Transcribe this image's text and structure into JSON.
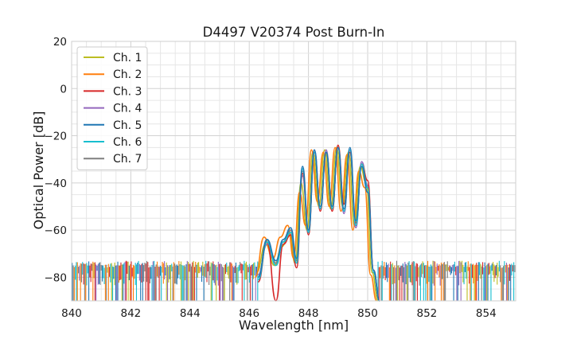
{
  "chart_data": {
    "type": "line",
    "title": "D4497 V20374 Post Burn-In",
    "xlabel": "Wavelength [nm]",
    "ylabel": "Optical Power [dB]",
    "xlim": [
      840,
      855
    ],
    "ylim": [
      -90,
      20
    ],
    "xticks": [
      840,
      842,
      844,
      846,
      848,
      850,
      852,
      854
    ],
    "yticks": [
      20,
      0,
      -20,
      -40,
      -60,
      -80
    ],
    "grid": true,
    "legend_position": "top-left",
    "noise_floor_range": [
      -90,
      -73
    ],
    "series": [
      {
        "name": "Ch. 1",
        "color": "#bcbd22",
        "x": [
          846.25,
          846.55,
          846.85,
          847.1,
          847.35,
          847.55,
          847.75,
          847.95,
          848.15,
          848.35,
          848.55,
          848.75,
          848.95,
          849.15,
          849.35,
          849.55,
          849.75,
          849.95,
          850.15,
          850.35
        ],
        "y": [
          -78,
          -66,
          -75,
          -67,
          -61,
          -74,
          -40,
          -60,
          -27,
          -50,
          -26,
          -51,
          -25,
          -50,
          -27,
          -58,
          -33,
          -40,
          -78,
          -90
        ]
      },
      {
        "name": "Ch. 2",
        "color": "#ff7f0e",
        "x": [
          846.2,
          846.5,
          846.8,
          847.05,
          847.3,
          847.5,
          847.7,
          847.9,
          848.1,
          848.3,
          848.5,
          848.7,
          848.9,
          849.1,
          849.3,
          849.5,
          849.7,
          849.9,
          850.1,
          850.3
        ],
        "y": [
          -80,
          -63,
          -72,
          -63,
          -58,
          -72,
          -44,
          -58,
          -26,
          -48,
          -27,
          -50,
          -25,
          -52,
          -28,
          -60,
          -35,
          -42,
          -79,
          -90
        ]
      },
      {
        "name": "Ch. 3",
        "color": "#d62728",
        "x": [
          846.3,
          846.6,
          846.9,
          847.15,
          847.4,
          847.6,
          847.8,
          848.0,
          848.2,
          848.4,
          848.6,
          848.8,
          849.0,
          849.2,
          849.4,
          849.6,
          849.8,
          850.0,
          850.2,
          850.4
        ],
        "y": [
          -82,
          -65,
          -90,
          -66,
          -62,
          -76,
          -36,
          -62,
          -27,
          -52,
          -27,
          -52,
          -24,
          -49,
          -27,
          -57,
          -32,
          -39,
          -77,
          -90
        ]
      },
      {
        "name": "Ch. 4",
        "color": "#9467bd",
        "x": [
          846.3,
          846.6,
          846.9,
          847.15,
          847.4,
          847.6,
          847.8,
          848.0,
          848.2,
          848.4,
          848.6,
          848.8,
          849.0,
          849.2,
          849.4,
          849.6,
          849.8,
          850.0,
          850.2,
          850.4
        ],
        "y": [
          -79,
          -66,
          -74,
          -65,
          -60,
          -73,
          -37,
          -61,
          -26,
          -51,
          -26,
          -51,
          -25,
          -53,
          -27,
          -59,
          -31,
          -41,
          -78,
          -90
        ]
      },
      {
        "name": "Ch. 5",
        "color": "#1f77b4",
        "x": [
          846.3,
          846.6,
          846.9,
          847.15,
          847.4,
          847.6,
          847.8,
          848.0,
          848.2,
          848.4,
          848.6,
          848.8,
          849.0,
          849.2,
          849.4,
          849.6,
          849.8,
          850.0,
          850.2,
          850.4
        ],
        "y": [
          -80,
          -64,
          -73,
          -64,
          -59,
          -72,
          -33,
          -60,
          -26,
          -50,
          -27,
          -50,
          -25,
          -51,
          -25,
          -56,
          -33,
          -44,
          -77,
          -90
        ]
      },
      {
        "name": "Ch. 6",
        "color": "#17becf",
        "x": [
          846.3,
          846.6,
          846.9,
          847.15,
          847.4,
          847.6,
          847.8,
          848.0,
          848.2,
          848.4,
          848.6,
          848.8,
          849.0,
          849.2,
          849.4,
          849.6,
          849.8,
          850.0,
          850.2,
          850.4
        ],
        "y": [
          -81,
          -65,
          -75,
          -65,
          -61,
          -74,
          -34,
          -61,
          -27,
          -51,
          -27,
          -51,
          -25,
          -52,
          -26,
          -58,
          -32,
          -42,
          -78,
          -90
        ]
      },
      {
        "name": "Ch. 7",
        "color": "#7f7f7f",
        "x": [
          846.3,
          846.6,
          846.9,
          847.15,
          847.4,
          847.6,
          847.8,
          848.0,
          848.2,
          848.4,
          848.6,
          848.8,
          849.0,
          849.2,
          849.4,
          849.6,
          849.8,
          850.0,
          850.2,
          850.4
        ],
        "y": [
          -80,
          -64,
          -74,
          -65,
          -60,
          -73,
          -35,
          -60,
          -27,
          -51,
          -27,
          -51,
          -25,
          -52,
          -27,
          -58,
          -32,
          -42,
          -78,
          -90
        ]
      }
    ]
  }
}
